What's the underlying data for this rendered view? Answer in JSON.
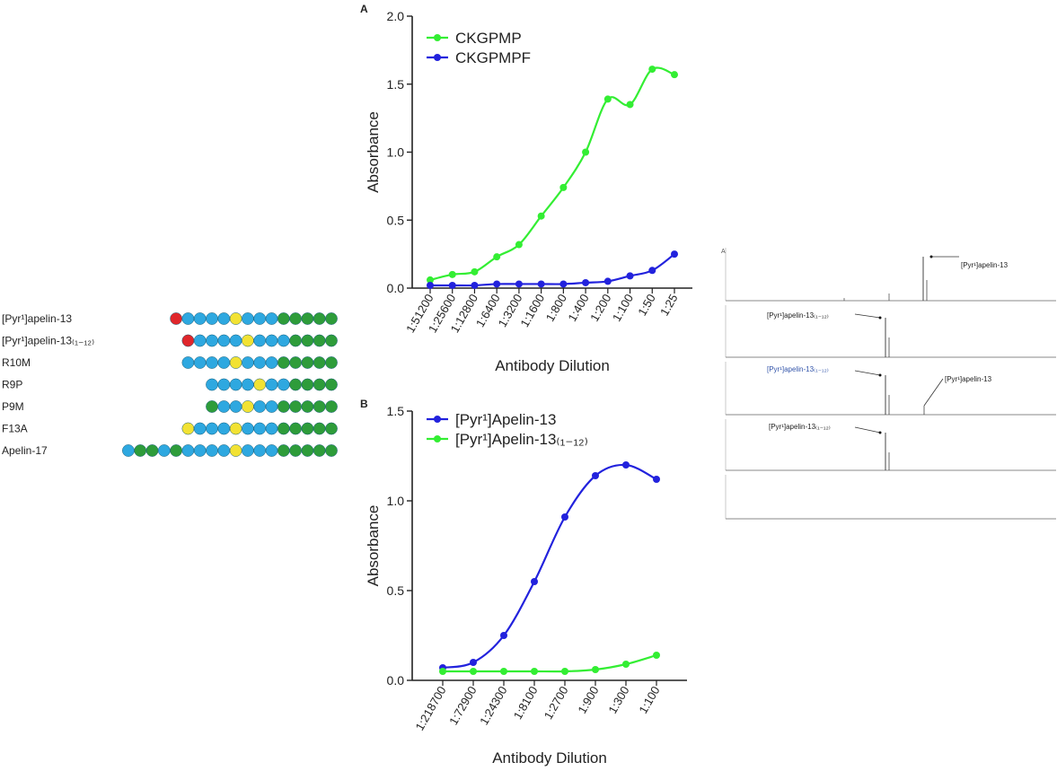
{
  "colors": {
    "green": "#33ee33",
    "blue": "#2222dd",
    "pyr_red": "#e0262b",
    "residue_blue": "#2ea8e0",
    "residue_yellow": "#f2e233",
    "residue_green": "#2e9c3a"
  },
  "peptide_panel": {
    "rows": [
      {
        "name": "[Pyr¹]apelin-13",
        "residues": [
          "R",
          "B",
          "B",
          "B",
          "B",
          "Y",
          "B",
          "B",
          "B",
          "G",
          "G",
          "G",
          "G",
          "G"
        ]
      },
      {
        "name": "[Pyr¹]apelin-13₍₁₋₁₂₎",
        "residues": [
          "R",
          "B",
          "B",
          "B",
          "B",
          "Y",
          "B",
          "B",
          "B",
          "G",
          "G",
          "G",
          "G"
        ]
      },
      {
        "name": "R10M",
        "residues": [
          "B",
          "B",
          "B",
          "B",
          "Y",
          "B",
          "B",
          "B",
          "G",
          "G",
          "G",
          "G",
          "G"
        ]
      },
      {
        "name": "R9P",
        "residues": [
          "B",
          "B",
          "B",
          "B",
          "Y",
          "B",
          "B",
          "G",
          "G",
          "G",
          "G"
        ]
      },
      {
        "name": "P9M",
        "residues": [
          "G",
          "B",
          "B",
          "Y",
          "B",
          "B",
          "G",
          "G",
          "G",
          "G",
          "G"
        ]
      },
      {
        "name": "F13A",
        "residues": [
          "Y",
          "B",
          "B",
          "B",
          "Y",
          "B",
          "B",
          "B",
          "G",
          "G",
          "G",
          "G",
          "G"
        ]
      },
      {
        "name": "Apelin-17",
        "residues": [
          "B",
          "G",
          "G",
          "B",
          "G",
          "B",
          "B",
          "B",
          "B",
          "Y",
          "B",
          "B",
          "B",
          "G",
          "G",
          "G",
          "G",
          "G"
        ]
      }
    ]
  },
  "chart_data": [
    {
      "panel": "A",
      "type": "line",
      "xlabel": "Antibody Dilution",
      "ylabel": "Absorbance",
      "categories": [
        "1:51200",
        "1:25600",
        "1:12800",
        "1:6400",
        "1:3200",
        "1:1600",
        "1:800",
        "1:400",
        "1:200",
        "1:100",
        "1:50",
        "1:25"
      ],
      "ylim": [
        0,
        2.0
      ],
      "yticks": [
        "0.0",
        "0.5",
        "1.0",
        "1.5",
        "2.0"
      ],
      "legend": "top-left",
      "series": [
        {
          "name": "CKGPMP",
          "color": "#33ee33",
          "values": [
            0.06,
            0.1,
            0.12,
            0.23,
            0.32,
            0.53,
            0.74,
            1.0,
            1.39,
            1.35,
            1.61,
            1.57
          ]
        },
        {
          "name": "CKGPMPF",
          "color": "#2222dd",
          "values": [
            0.02,
            0.02,
            0.02,
            0.03,
            0.03,
            0.03,
            0.03,
            0.04,
            0.05,
            0.09,
            0.13,
            0.25
          ]
        }
      ]
    },
    {
      "panel": "B",
      "type": "line",
      "xlabel": "Antibody Dilution",
      "ylabel": "Absorbance",
      "categories": [
        "1:218700",
        "1:72900",
        "1:24300",
        "1:8100",
        "1:2700",
        "1:900",
        "1:300",
        "1:100"
      ],
      "ylim": [
        0,
        1.5
      ],
      "yticks": [
        "0.0",
        "0.5",
        "1.0",
        "1.5"
      ],
      "legend": "top-left",
      "series": [
        {
          "name": "[Pyr¹]Apelin-13",
          "color": "#2222dd",
          "values": [
            0.07,
            0.1,
            0.25,
            0.55,
            0.91,
            1.14,
            1.2,
            1.12
          ]
        },
        {
          "name": "[Pyr¹]Apelin-13₍₁₋₁₂₎",
          "color": "#33ee33",
          "values": [
            0.05,
            0.05,
            0.05,
            0.05,
            0.05,
            0.06,
            0.09,
            0.14
          ]
        }
      ]
    }
  ],
  "ms_panel": {
    "letter": "A",
    "labels": {
      "s1": "[Pyr¹]apelin-13",
      "s2": "[Pyr¹]apelin-13₍₁₋₁₂₎",
      "s3a": "[Pyr¹]apelin-13₍₁₋₁₂₎",
      "s3b": "[Pyr¹]apelin-13",
      "s4": "[Pyr¹]apelin-13₍₁₋₁₂₎"
    }
  }
}
